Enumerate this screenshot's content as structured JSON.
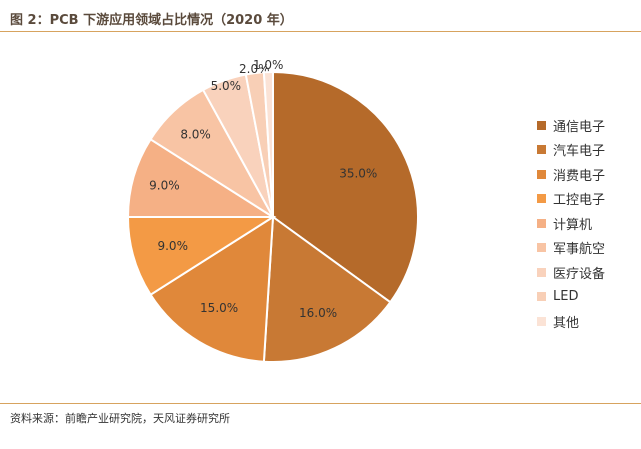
{
  "title": "图 2：PCB 下游应用领域占比情况（2020 年）",
  "source": "资料来源：前瞻产业研究院，天风证券研究所",
  "chart_data": {
    "type": "pie",
    "start_angle_deg": 90,
    "direction": "clockwise",
    "legend_position": "right",
    "slices": [
      {
        "name": "通信电子",
        "value": 35.0,
        "label": "35.0%",
        "color": "#b56a2a"
      },
      {
        "name": "汽车电子",
        "value": 16.0,
        "label": "16.0%",
        "color": "#c87934"
      },
      {
        "name": "消费电子",
        "value": 15.0,
        "label": "15.0%",
        "color": "#e0883a"
      },
      {
        "name": "工控电子",
        "value": 9.0,
        "label": "9.0%",
        "color": "#f39a45"
      },
      {
        "name": "计算机",
        "value": 9.0,
        "label": "9.0%",
        "color": "#f5b085"
      },
      {
        "name": "军事航空",
        "value": 8.0,
        "label": "8.0%",
        "color": "#f8c4a4"
      },
      {
        "name": "医疗设备",
        "value": 5.0,
        "label": "5.0%",
        "color": "#f9d2bc"
      },
      {
        "name": "LED",
        "value": 2.0,
        "label": "2.0%",
        "color": "#f8cfb6"
      },
      {
        "name": "其他",
        "value": 1.0,
        "label": "1.0%",
        "color": "#fbe3d6"
      }
    ]
  }
}
